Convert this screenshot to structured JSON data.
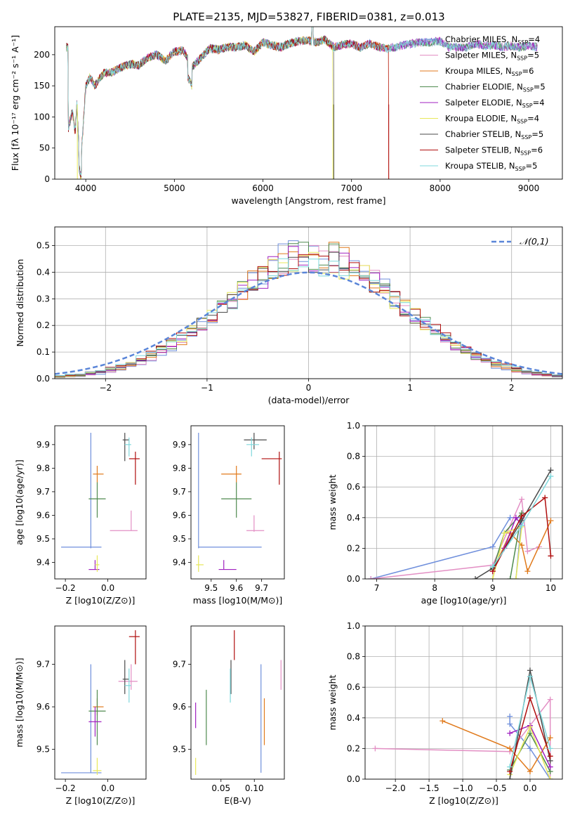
{
  "title": "PLATE=2135, MJD=53827, FIBERID=0381, z=0.013",
  "models": [
    {
      "name": "Chabrier MILES",
      "nssp": "4",
      "color": "#6f8fdc"
    },
    {
      "name": "Salpeter MILES",
      "nssp": "5",
      "color": "#e38fc4"
    },
    {
      "name": "Kroupa MILES",
      "nssp": "6",
      "color": "#e07a1c"
    },
    {
      "name": "Chabrier ELODIE",
      "nssp": "5",
      "color": "#4f8a4f"
    },
    {
      "name": "Salpeter ELODIE",
      "nssp": "4",
      "color": "#a020c0"
    },
    {
      "name": "Kroupa ELODIE",
      "nssp": "4",
      "color": "#e8e85a"
    },
    {
      "name": "Chabrier STELIB",
      "nssp": "5",
      "color": "#4a4a4a"
    },
    {
      "name": "Salpeter STELIB",
      "nssp": "6",
      "color": "#b00e0e"
    },
    {
      "name": "Kroupa STELIB",
      "nssp": "5",
      "color": "#7fd8dc"
    }
  ],
  "chart_data": [
    {
      "id": "spectrum",
      "type": "line",
      "xlabel": "wavelength [Angstrom, rest frame]",
      "ylabel": "Flux [fλ 10⁻¹⁷ erg cm⁻² s⁻¹ A⁻¹]",
      "xlim": [
        3650,
        9380
      ],
      "ylim": [
        0,
        245
      ],
      "xticks": [
        4000,
        5000,
        6000,
        7000,
        8000,
        9000
      ],
      "yticks": [
        0,
        50,
        100,
        150,
        200
      ],
      "x": [
        3800,
        3850,
        3880,
        3900,
        3920,
        3950,
        4000,
        4050,
        4100,
        4200,
        4300,
        4400,
        4500,
        4600,
        4700,
        4800,
        4900,
        5000,
        5100,
        5200,
        5300,
        5400,
        5500,
        5600,
        5700,
        5800,
        5900,
        6000,
        6100,
        6200,
        6300,
        6400,
        6500,
        6600,
        6700,
        6800,
        6900,
        7000,
        7100,
        7200,
        7300,
        7400,
        7500,
        7600,
        7700,
        7800,
        7900,
        8000,
        8100,
        8200,
        8300,
        8400,
        8500,
        8600,
        8700,
        8800,
        8900,
        9000,
        9100
      ],
      "y": [
        80,
        110,
        75,
        120,
        60,
        40,
        150,
        165,
        150,
        170,
        172,
        180,
        185,
        183,
        195,
        200,
        190,
        205,
        207,
        180,
        195,
        210,
        208,
        213,
        212,
        215,
        205,
        220,
        215,
        212,
        218,
        222,
        223,
        220,
        224,
        212,
        216,
        218,
        211,
        218,
        213,
        210,
        212,
        216,
        218,
        220,
        220,
        222,
        212,
        212,
        212,
        218,
        214,
        216,
        212,
        214,
        212,
        215,
        212
      ],
      "dips": [
        {
          "name": "Kroupa ELODIE",
          "x": 3905
        },
        {
          "name": "Kroupa ELODIE",
          "x": 6790
        },
        {
          "name": "Chabrier STELIB",
          "x": 6800
        },
        {
          "name": "Salpeter STELIB",
          "x": 7420
        }
      ],
      "ends_at": {
        "Salpeter STELIB": 7420,
        "Kroupa ELODIE": 6790,
        "Chabrier STELIB": 6800,
        "Kroupa MILES": 7420
      },
      "legend": "top-right"
    },
    {
      "id": "residuals",
      "type": "histogram",
      "xlabel": "(data-model)/error",
      "ylabel": "Normed distribution",
      "xlim": [
        -2.5,
        2.5
      ],
      "ylim": [
        0,
        0.57
      ],
      "xticks": [
        -2,
        -1,
        0,
        1,
        2
      ],
      "yticks": [
        0.0,
        0.1,
        0.2,
        0.3,
        0.4,
        0.5
      ],
      "bin_width": 0.1,
      "gaussian_label": "𝒩(0,1)",
      "grid": true
    },
    {
      "id": "z-age",
      "type": "scatter",
      "xlabel": "Z [log10(Z/Z⊙)]",
      "ylabel": "age  [log10(age/yr)]",
      "xlim": [
        -0.25,
        0.18
      ],
      "ylim": [
        9.33,
        9.98
      ],
      "xticks": [
        -0.2,
        0.0
      ],
      "yticks": [
        9.4,
        9.5,
        9.6,
        9.7,
        9.8,
        9.9
      ],
      "points": [
        {
          "name": "Chabrier MILES",
          "x": -0.08,
          "y": 9.465,
          "xlo": -0.22,
          "xhi": -0.03,
          "ylo": 9.46,
          "yhi": 9.95
        },
        {
          "name": "Salpeter MILES",
          "x": 0.11,
          "y": 9.535,
          "xlo": 0.01,
          "xhi": 0.14,
          "ylo": 9.535,
          "yhi": 9.62
        },
        {
          "name": "Kroupa MILES",
          "x": -0.05,
          "y": 9.775,
          "xlo": -0.07,
          "xhi": -0.02,
          "ylo": 9.74,
          "yhi": 9.81
        },
        {
          "name": "Chabrier ELODIE",
          "x": -0.05,
          "y": 9.67,
          "xlo": -0.09,
          "xhi": -0.01,
          "ylo": 9.59,
          "yhi": 9.74
        },
        {
          "name": "Salpeter ELODIE",
          "x": -0.06,
          "y": 9.37,
          "xlo": -0.09,
          "xhi": -0.04,
          "ylo": 9.37,
          "yhi": 9.41
        },
        {
          "name": "Kroupa ELODIE",
          "x": -0.05,
          "y": 9.39,
          "xlo": -0.06,
          "xhi": -0.04,
          "ylo": 9.36,
          "yhi": 9.43
        },
        {
          "name": "Chabrier STELIB",
          "x": 0.08,
          "y": 9.92,
          "xlo": 0.07,
          "xhi": 0.1,
          "ylo": 9.83,
          "yhi": 9.95
        },
        {
          "name": "Salpeter STELIB",
          "x": 0.13,
          "y": 9.84,
          "xlo": 0.1,
          "xhi": 0.15,
          "ylo": 9.73,
          "yhi": 9.87
        },
        {
          "name": "Kroupa STELIB",
          "x": 0.1,
          "y": 9.9,
          "xlo": 0.08,
          "xhi": 0.11,
          "ylo": 9.85,
          "yhi": 9.93
        }
      ]
    },
    {
      "id": "mass-age",
      "type": "scatter",
      "xlabel": "mass [log10(M/M⊙)]",
      "ylabel": "",
      "xlim": [
        9.42,
        9.79
      ],
      "ylim": [
        9.33,
        9.98
      ],
      "xticks": [
        9.5,
        9.6,
        9.7
      ],
      "yticks": [
        9.4,
        9.5,
        9.6,
        9.7,
        9.8,
        9.9
      ],
      "points": [
        {
          "name": "Chabrier MILES",
          "x": 9.45,
          "y": 9.465,
          "xlo": 9.45,
          "xhi": 9.7,
          "ylo": 9.46,
          "yhi": 9.95
        },
        {
          "name": "Salpeter MILES",
          "x": 9.67,
          "y": 9.535,
          "xlo": 9.64,
          "xhi": 9.71,
          "ylo": 9.53,
          "yhi": 9.6
        },
        {
          "name": "Kroupa MILES",
          "x": 9.6,
          "y": 9.775,
          "xlo": 9.54,
          "xhi": 9.62,
          "ylo": 9.74,
          "yhi": 9.81
        },
        {
          "name": "Chabrier ELODIE",
          "x": 9.6,
          "y": 9.67,
          "xlo": 9.54,
          "xhi": 9.66,
          "ylo": 9.59,
          "yhi": 9.74
        },
        {
          "name": "Salpeter ELODIE",
          "x": 9.55,
          "y": 9.37,
          "xlo": 9.53,
          "xhi": 9.6,
          "ylo": 9.37,
          "yhi": 9.41
        },
        {
          "name": "Kroupa ELODIE",
          "x": 9.45,
          "y": 9.39,
          "xlo": 9.44,
          "xhi": 9.47,
          "ylo": 9.36,
          "yhi": 9.43
        },
        {
          "name": "Chabrier STELIB",
          "x": 9.67,
          "y": 9.92,
          "xlo": 9.63,
          "xhi": 9.72,
          "ylo": 9.88,
          "yhi": 9.95
        },
        {
          "name": "Salpeter STELIB",
          "x": 9.77,
          "y": 9.84,
          "xlo": 9.7,
          "xhi": 9.78,
          "ylo": 9.73,
          "yhi": 9.87
        },
        {
          "name": "Kroupa STELIB",
          "x": 9.66,
          "y": 9.9,
          "xlo": 9.64,
          "xhi": 9.69,
          "ylo": 9.85,
          "yhi": 9.93
        }
      ]
    },
    {
      "id": "age-weight",
      "type": "line",
      "xlabel": "age  [log10(age/yr)]",
      "ylabel": "mass weight",
      "xlim": [
        6.8,
        10.2
      ],
      "ylim": [
        0,
        1.0
      ],
      "xticks": [
        7,
        8,
        9,
        10
      ],
      "yticks": [
        0.0,
        0.2,
        0.4,
        0.6,
        0.8,
        1.0
      ],
      "series": [
        {
          "name": "Chabrier MILES",
          "points": [
            [
              6.9,
              0.0
            ],
            [
              9.0,
              0.21
            ],
            [
              9.3,
              0.4
            ],
            [
              9.5,
              0.4
            ],
            [
              9.4,
              0.0
            ]
          ]
        },
        {
          "name": "Salpeter MILES",
          "points": [
            [
              6.9,
              0.0
            ],
            [
              9.0,
              0.09
            ],
            [
              9.5,
              0.52
            ],
            [
              9.6,
              0.18
            ],
            [
              9.8,
              0.21
            ]
          ]
        },
        {
          "name": "Kroupa MILES",
          "points": [
            [
              9.0,
              0.05
            ],
            [
              9.3,
              0.3
            ],
            [
              9.5,
              0.22
            ],
            [
              9.6,
              0.05
            ],
            [
              10.0,
              0.38
            ]
          ]
        },
        {
          "name": "Chabrier ELODIE",
          "points": [
            [
              9.0,
              0.06
            ],
            [
              9.2,
              0.3
            ],
            [
              9.5,
              0.43
            ],
            [
              9.3,
              0.0
            ]
          ]
        },
        {
          "name": "Salpeter ELODIE",
          "points": [
            [
              9.0,
              0.05
            ],
            [
              9.2,
              0.2
            ],
            [
              9.4,
              0.4
            ],
            [
              9.5,
              0.35
            ]
          ]
        },
        {
          "name": "Kroupa ELODIE",
          "points": [
            [
              9.0,
              0.0
            ],
            [
              9.2,
              0.3
            ],
            [
              9.5,
              0.34
            ],
            [
              9.4,
              0.0
            ]
          ]
        },
        {
          "name": "Chabrier STELIB",
          "points": [
            [
              8.7,
              0.0
            ],
            [
              9.0,
              0.07
            ],
            [
              9.5,
              0.38
            ],
            [
              10.0,
              0.71
            ]
          ]
        },
        {
          "name": "Salpeter STELIB",
          "points": [
            [
              9.0,
              0.05
            ],
            [
              9.5,
              0.41
            ],
            [
              9.9,
              0.53
            ],
            [
              10.0,
              0.15
            ]
          ]
        },
        {
          "name": "Kroupa STELIB",
          "points": [
            [
              9.0,
              0.08
            ],
            [
              9.5,
              0.35
            ],
            [
              10.0,
              0.67
            ]
          ]
        }
      ]
    },
    {
      "id": "z-mass",
      "type": "scatter",
      "xlabel": "Z [log10(Z/Z⊙)]",
      "ylabel": "mass [log10(M/M⊙)]",
      "xlim": [
        -0.25,
        0.18
      ],
      "ylim": [
        9.43,
        9.79
      ],
      "xticks": [
        -0.2,
        0.0
      ],
      "yticks": [
        9.5,
        9.6,
        9.7
      ],
      "points": [
        {
          "name": "Chabrier MILES",
          "x": -0.08,
          "y": 9.445,
          "xlo": -0.22,
          "xhi": -0.03,
          "ylo": 9.445,
          "yhi": 9.7
        },
        {
          "name": "Salpeter MILES",
          "x": 0.11,
          "y": 9.66,
          "xlo": 0.05,
          "xhi": 0.14,
          "ylo": 9.64,
          "yhi": 9.7
        },
        {
          "name": "Kroupa MILES",
          "x": -0.05,
          "y": 9.6,
          "xlo": -0.07,
          "xhi": -0.02,
          "ylo": 9.58,
          "yhi": 9.62
        },
        {
          "name": "Chabrier ELODIE",
          "x": -0.05,
          "y": 9.59,
          "xlo": -0.09,
          "xhi": -0.01,
          "ylo": 9.51,
          "yhi": 9.64
        },
        {
          "name": "Salpeter ELODIE",
          "x": -0.06,
          "y": 9.565,
          "xlo": -0.09,
          "xhi": -0.03,
          "ylo": 9.53,
          "yhi": 9.6
        },
        {
          "name": "Kroupa ELODIE",
          "x": -0.05,
          "y": 9.45,
          "xlo": -0.07,
          "xhi": -0.03,
          "ylo": 9.44,
          "yhi": 9.48
        },
        {
          "name": "Chabrier STELIB",
          "x": 0.08,
          "y": 9.665,
          "xlo": 0.07,
          "xhi": 0.1,
          "ylo": 9.63,
          "yhi": 9.71
        },
        {
          "name": "Salpeter STELIB",
          "x": 0.13,
          "y": 9.765,
          "xlo": 0.1,
          "xhi": 0.15,
          "ylo": 9.7,
          "yhi": 9.78
        },
        {
          "name": "Kroupa STELIB",
          "x": 0.1,
          "y": 9.65,
          "xlo": 0.08,
          "xhi": 0.11,
          "ylo": 9.61,
          "yhi": 9.69
        }
      ]
    },
    {
      "id": "ebv-mass",
      "type": "scatter",
      "xlabel": "E(B-V)",
      "ylabel": "",
      "xlim": [
        0.005,
        0.145
      ],
      "ylim": [
        9.43,
        9.79
      ],
      "xticks": [
        0.05,
        0.1
      ],
      "xticklabels": [
        "0.05",
        "0.10"
      ],
      "yticks": [
        9.5,
        9.6,
        9.7
      ],
      "points": [
        {
          "name": "Chabrier MILES",
          "x": 0.11,
          "ylo": 9.445,
          "yhi": 9.7
        },
        {
          "name": "Salpeter MILES",
          "x": 0.14,
          "ylo": 9.64,
          "yhi": 9.71
        },
        {
          "name": "Kroupa MILES",
          "x": 0.115,
          "ylo": 9.51,
          "yhi": 9.62
        },
        {
          "name": "Chabrier ELODIE",
          "x": 0.028,
          "ylo": 9.51,
          "yhi": 9.64
        },
        {
          "name": "Salpeter ELODIE",
          "x": 0.012,
          "ylo": 9.55,
          "yhi": 9.61
        },
        {
          "name": "Kroupa ELODIE",
          "x": 0.012,
          "ylo": 9.44,
          "yhi": 9.48
        },
        {
          "name": "Chabrier STELIB",
          "x": 0.065,
          "ylo": 9.63,
          "yhi": 9.71
        },
        {
          "name": "Salpeter STELIB",
          "x": 0.07,
          "ylo": 9.71,
          "yhi": 9.78
        },
        {
          "name": "Kroupa STELIB",
          "x": 0.064,
          "ylo": 9.61,
          "yhi": 9.69
        }
      ]
    },
    {
      "id": "z-weight",
      "type": "line",
      "xlabel": "Z [log10(Z/Z⊙)]",
      "ylabel": "mass weight",
      "xlim": [
        -2.45,
        0.48
      ],
      "ylim": [
        0,
        1.0
      ],
      "xticks": [
        -2.0,
        -1.5,
        -1.0,
        -0.5,
        0.0
      ],
      "yticks": [
        0.0,
        0.2,
        0.4,
        0.6,
        0.8,
        1.0
      ],
      "series": [
        {
          "name": "Chabrier MILES",
          "points": [
            [
              -0.3,
              0.41
            ],
            [
              -0.3,
              0.36
            ],
            [
              0.0,
              0.2
            ],
            [
              0.3,
              0.0
            ]
          ]
        },
        {
          "name": "Salpeter MILES",
          "points": [
            [
              -2.3,
              0.2
            ],
            [
              -0.3,
              0.18
            ],
            [
              0.3,
              0.52
            ],
            [
              0.3,
              0.0
            ]
          ]
        },
        {
          "name": "Kroupa MILES",
          "points": [
            [
              -1.3,
              0.38
            ],
            [
              -0.3,
              0.2
            ],
            [
              0.0,
              0.05
            ],
            [
              0.3,
              0.27
            ]
          ]
        },
        {
          "name": "Chabrier ELODIE",
          "points": [
            [
              -0.3,
              0.06
            ],
            [
              0.0,
              0.3
            ],
            [
              0.3,
              0.05
            ]
          ]
        },
        {
          "name": "Salpeter ELODIE",
          "points": [
            [
              -0.3,
              0.3
            ],
            [
              0.0,
              0.35
            ],
            [
              0.3,
              0.08
            ]
          ]
        },
        {
          "name": "Kroupa ELODIE",
          "points": [
            [
              -0.3,
              0.03
            ],
            [
              0.0,
              0.34
            ],
            [
              0.3,
              0.0
            ]
          ]
        },
        {
          "name": "Chabrier STELIB",
          "points": [
            [
              -0.3,
              0.0
            ],
            [
              0.0,
              0.71
            ],
            [
              0.3,
              0.12
            ]
          ]
        },
        {
          "name": "Salpeter STELIB",
          "points": [
            [
              -0.3,
              0.05
            ],
            [
              0.0,
              0.53
            ],
            [
              0.3,
              0.15
            ]
          ]
        },
        {
          "name": "Kroupa STELIB",
          "points": [
            [
              -0.3,
              0.08
            ],
            [
              0.0,
              0.67
            ],
            [
              0.3,
              0.2
            ]
          ]
        }
      ]
    }
  ]
}
